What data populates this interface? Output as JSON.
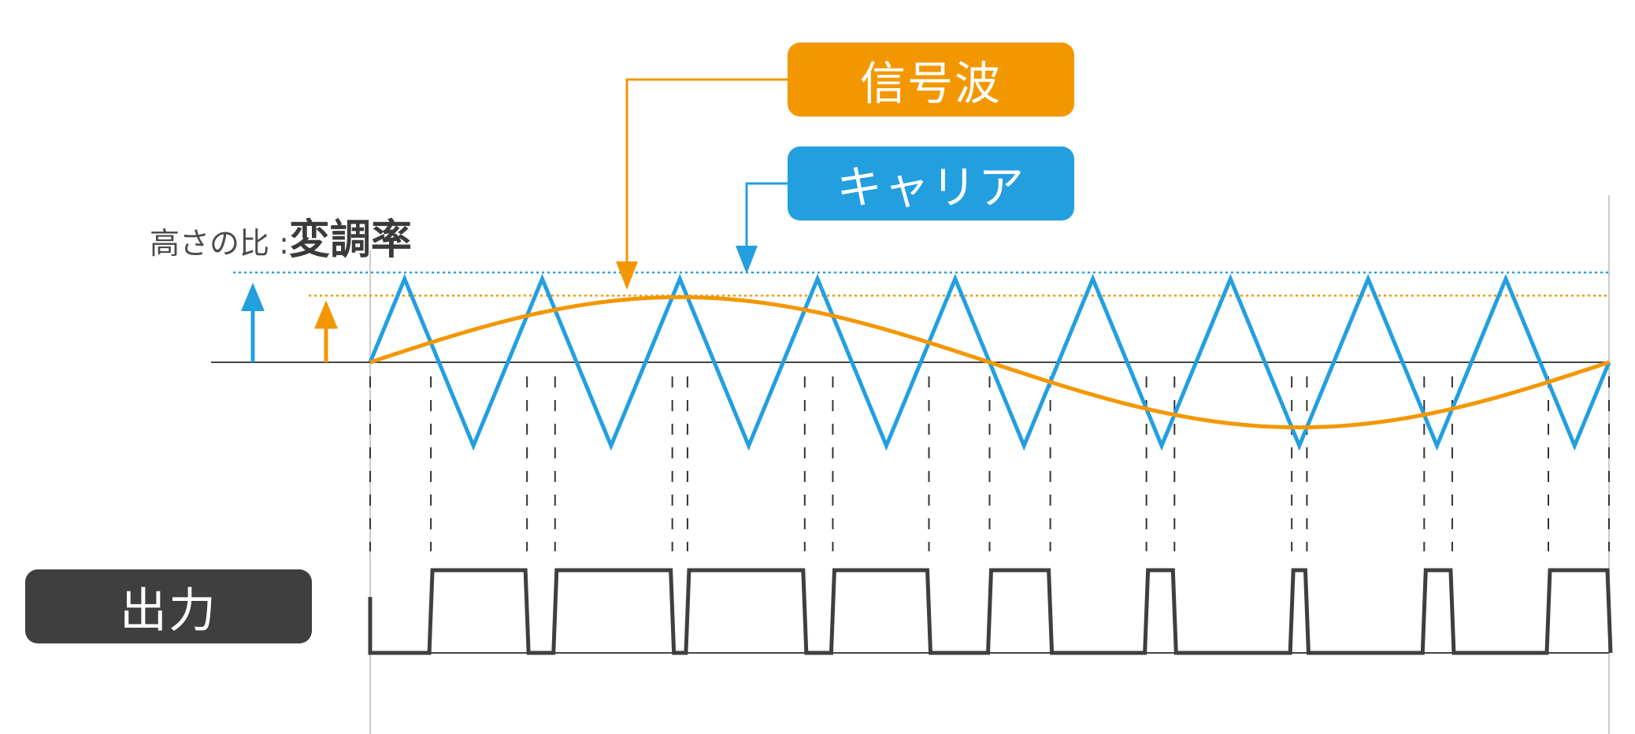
{
  "labels": {
    "signal": "信号波",
    "carrier": "キャリア",
    "output": "出力",
    "ratio_prefix": "高さの比 : ",
    "ratio_main": "変調率"
  },
  "colors": {
    "signal": "#f39700",
    "carrier": "#239fe0",
    "output": "#3f3f3f",
    "axis": "#444444",
    "guide": "#cccccc"
  },
  "waveform": {
    "carrier_periods": 9,
    "modulation_ratio": 0.78,
    "signal_cycles": 1
  }
}
